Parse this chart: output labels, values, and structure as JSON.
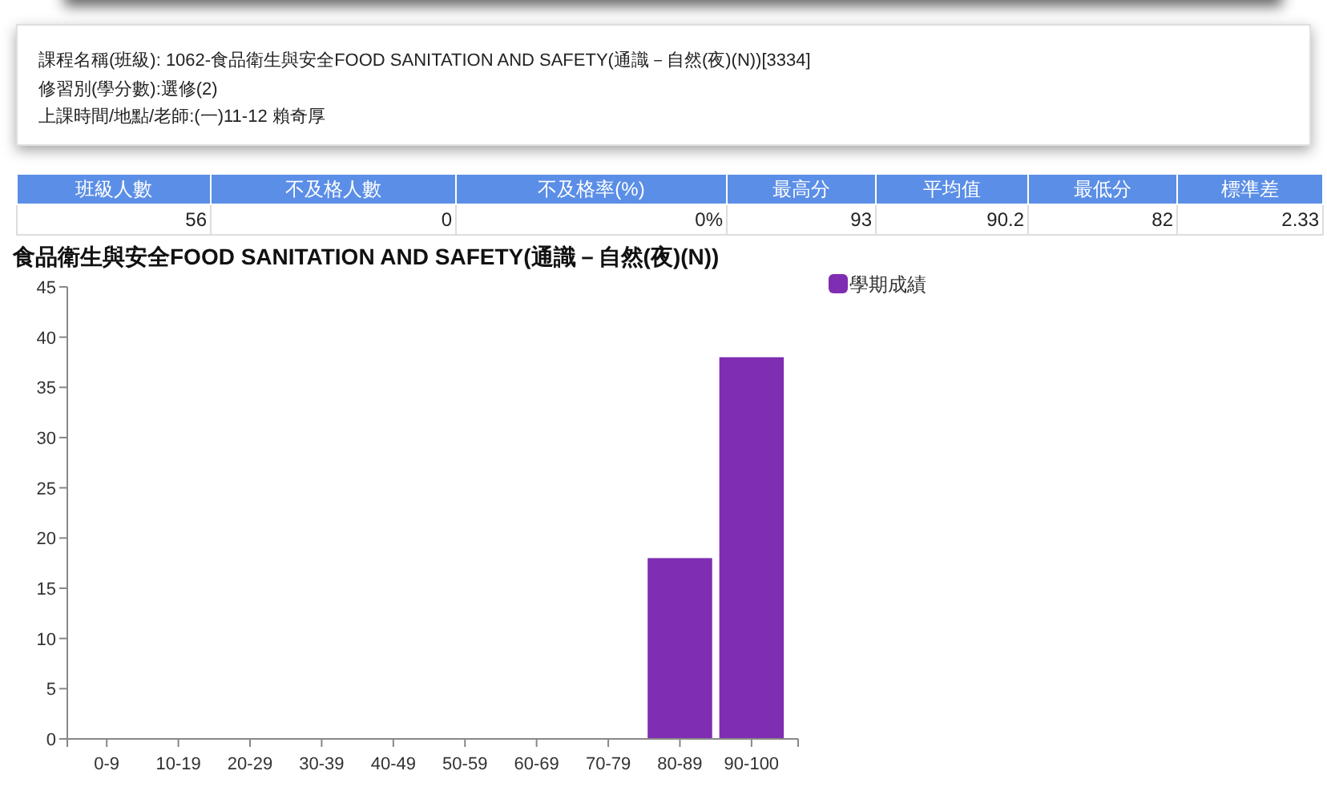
{
  "chart_data": [
    {
      "type": "other",
      "annotations": [
        "課程名稱(班級): 1062-食品衛生與安全FOOD SANITATION AND SAFETY(通識－自然(夜)(N))[3334]",
        "修習別(學分數):選修(2)",
        "上課時間/地點/老師:(一)11-12 賴奇厚"
      ]
    },
    {
      "type": "other",
      "categories": [
        "班級人數",
        "不及格人數",
        "不及格率(%)",
        "最高分",
        "平均值",
        "最低分",
        "標準差"
      ],
      "value_labels": [
        "56",
        "0",
        "0%",
        "93",
        "90.2",
        "82",
        "2.33"
      ],
      "color": "#5b8ee6"
    },
    {
      "type": "bar",
      "title": "食品衛生與安全FOOD SANITATION AND SAFETY(通識－自然(夜)(N))",
      "categories": [
        "0-9",
        "10-19",
        "20-29",
        "30-39",
        "40-49",
        "50-59",
        "60-69",
        "70-79",
        "80-89",
        "90-100"
      ],
      "series": [
        {
          "name": "學期成績",
          "color": "#7f2db2",
          "values": [
            0,
            0,
            0,
            0,
            0,
            0,
            0,
            0,
            18,
            38
          ]
        }
      ],
      "ylim": [
        0,
        45
      ],
      "yticks": [
        0,
        5,
        10,
        15,
        20,
        25,
        30,
        35,
        40,
        45
      ],
      "legend": "top right"
    }
  ]
}
